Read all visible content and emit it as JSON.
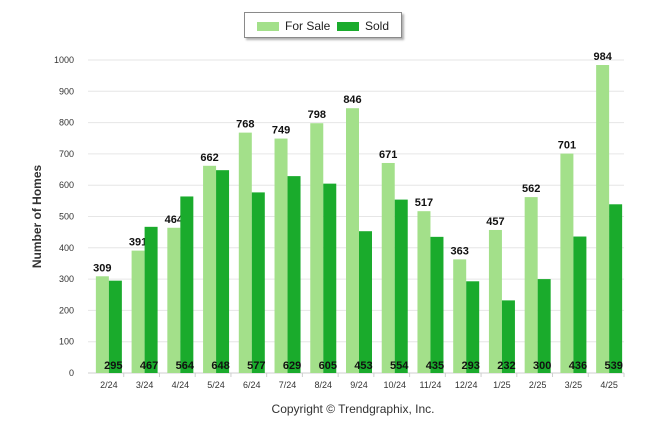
{
  "chart_data": {
    "type": "bar",
    "categories": [
      "2/24",
      "3/24",
      "4/24",
      "5/24",
      "6/24",
      "7/24",
      "8/24",
      "9/24",
      "10/24",
      "11/24",
      "12/24",
      "1/25",
      "2/25",
      "3/25",
      "4/25"
    ],
    "series": [
      {
        "name": "For Sale",
        "color": "#a3e08a",
        "values": [
          309,
          391,
          464,
          662,
          768,
          749,
          798,
          846,
          671,
          517,
          363,
          457,
          562,
          701,
          984
        ]
      },
      {
        "name": "Sold",
        "color": "#1aab2c",
        "values": [
          295,
          467,
          564,
          648,
          577,
          629,
          605,
          453,
          554,
          435,
          293,
          232,
          300,
          436,
          539
        ]
      }
    ],
    "ylabel": "Number of Homes",
    "xlabel": "",
    "ylim": [
      0,
      1000
    ],
    "yticks": [
      0,
      100,
      200,
      300,
      400,
      500,
      600,
      700,
      800,
      900,
      1000
    ],
    "grid": true,
    "legend_position": "top-center"
  },
  "legend": {
    "items": [
      {
        "label": "For Sale",
        "color": "#a3e08a"
      },
      {
        "label": "Sold",
        "color": "#1aab2c"
      }
    ]
  },
  "footer": {
    "copyright": "Copyright © Trendgraphix, Inc."
  }
}
